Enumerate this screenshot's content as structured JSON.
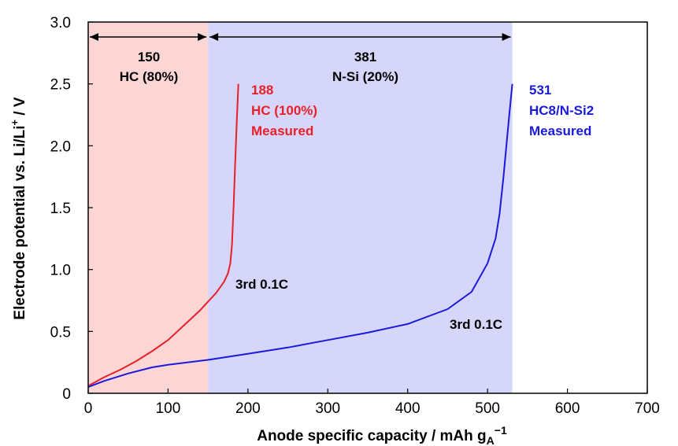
{
  "chart_data": {
    "type": "line",
    "xlabel_main": "Anode specific capacity / mAh g",
    "xlabel_sub": "A",
    "xlabel_sup": "−1",
    "ylabel_main": "Electrode potential vs. Li/Li",
    "ylabel_sup": "+",
    "ylabel_end": " / V",
    "xlim": [
      0,
      700
    ],
    "ylim": [
      0,
      3.0
    ],
    "x_ticks": [
      0,
      100,
      200,
      300,
      400,
      500,
      600,
      700
    ],
    "y_ticks": [
      0,
      0.5,
      1.0,
      1.5,
      2.0,
      2.5,
      3.0
    ],
    "x_tick_labels": [
      "0",
      "100",
      "200",
      "300",
      "400",
      "500",
      "600",
      "700"
    ],
    "y_tick_labels": [
      "0",
      "0.5",
      "1.0",
      "1.5",
      "2.0",
      "2.5",
      "3.0"
    ],
    "regions": [
      {
        "x0": 0,
        "x1": 150,
        "color": "#fcd5d5",
        "value": "150",
        "label": "HC (80%)"
      },
      {
        "x0": 150,
        "x1": 531,
        "color": "#d6d6fa",
        "value": "381",
        "label": "N-Si (20%)"
      }
    ],
    "series": [
      {
        "color": "#e8202a",
        "name_lines": [
          "188",
          "HC (100%)",
          "Measured"
        ],
        "rate_label": "3rd 0.1C",
        "x": [
          0,
          20,
          40,
          60,
          80,
          100,
          120,
          140,
          150,
          160,
          170,
          175,
          178,
          180,
          182,
          184,
          186,
          188
        ],
        "y": [
          0.06,
          0.13,
          0.19,
          0.26,
          0.34,
          0.43,
          0.55,
          0.67,
          0.74,
          0.81,
          0.9,
          0.97,
          1.05,
          1.2,
          1.5,
          1.85,
          2.2,
          2.5
        ]
      },
      {
        "color": "#1a1adc",
        "name_lines": [
          "531",
          "HC8/N-Si2",
          "Measured"
        ],
        "rate_label": "3rd 0.1C",
        "x": [
          0,
          20,
          50,
          80,
          100,
          150,
          200,
          250,
          300,
          350,
          400,
          450,
          480,
          500,
          510,
          515,
          520,
          525,
          528,
          531
        ],
        "y": [
          0.05,
          0.1,
          0.16,
          0.21,
          0.23,
          0.27,
          0.32,
          0.37,
          0.43,
          0.49,
          0.56,
          0.68,
          0.82,
          1.05,
          1.25,
          1.45,
          1.75,
          2.1,
          2.3,
          2.5
        ]
      }
    ]
  }
}
